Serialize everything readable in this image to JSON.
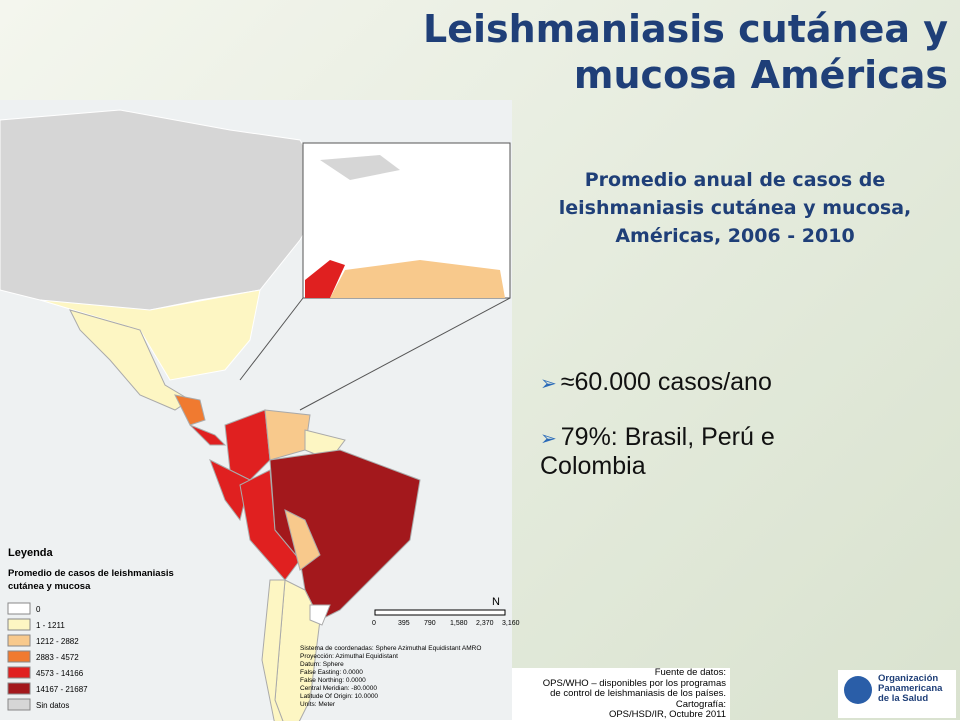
{
  "title": [
    "Leishmaniasis cutánea y",
    "mucosa Américas"
  ],
  "subtitle": [
    "Promedio  anual de casos de",
    "leishmaniasis  cutánea y mucosa,",
    "Américas, 2006 - 2010"
  ],
  "bullets": [
    "≈60.000 casos/ano",
    "79%: Brasil, Perú e Colombia"
  ],
  "map": {
    "legend": {
      "title": "Leyenda",
      "subtitle": [
        "Promedio de casos de leishmaniasis",
        "cutánea y mucosa"
      ],
      "classes": [
        {
          "label": "0",
          "color": "#ffffff"
        },
        {
          "label": "1 - 1211",
          "color": "#fdf6c3"
        },
        {
          "label": "1212 - 2882",
          "color": "#f8c98c"
        },
        {
          "label": "2883 - 4572",
          "color": "#f07a30"
        },
        {
          "label": "4573 - 14166",
          "color": "#e02020"
        },
        {
          "label": "14167 - 21687",
          "color": "#a3181c"
        },
        {
          "label": "Sin datos",
          "color": "#d6d6d6"
        }
      ]
    },
    "scale": [
      "0",
      "395",
      "790",
      "1,580",
      "2,370",
      "3,160"
    ],
    "north": "N",
    "projection": [
      "Sistema de coordenadas: Sphere Azimuthal Equidistant AMRO",
      "Proyección: Azimuthal Equidistant",
      "Datum: Sphere",
      "False Easting: 0.0000",
      "False Northing: 0.0000",
      "Central Meridian: -80.0000",
      "Latitude Of Origin: 10.0000",
      "Units: Meter"
    ]
  },
  "source": [
    "Fuente de datos:",
    "OPS/WHO – disponibles por los programas",
    "de control de leishmaniasis de los países.",
    "Cartografía:",
    "OPS/HSD/IR, Octubre 2011"
  ],
  "logo": [
    "Organización",
    "Panamericana",
    "de la Salud"
  ]
}
